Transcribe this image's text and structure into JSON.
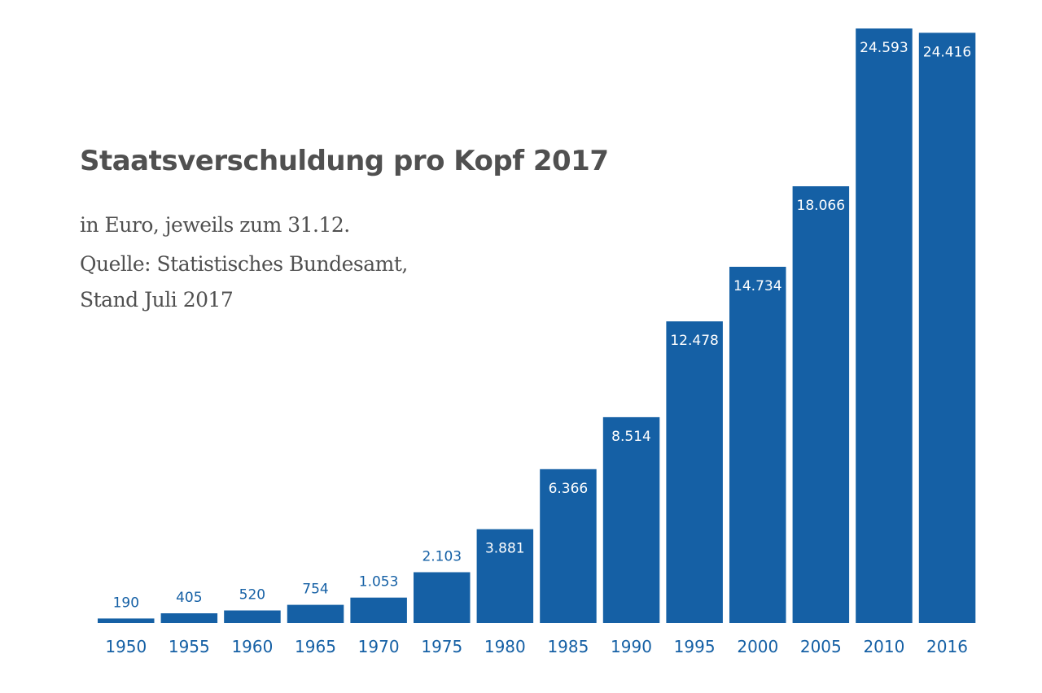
{
  "chart_data": {
    "type": "bar",
    "title": "Staatsverschuldung pro Kopf 2017",
    "subtitle_lines": [
      "in Euro, jeweils zum 31.12.",
      "Quelle: Statistisches Bundesamt,",
      "Stand Juli 2017"
    ],
    "categories": [
      "1950",
      "1955",
      "1960",
      "1965",
      "1970",
      "1975",
      "1980",
      "1985",
      "1990",
      "1995",
      "2000",
      "2005",
      "2010",
      "2016"
    ],
    "values": [
      190,
      405,
      520,
      754,
      1053,
      2103,
      3881,
      6366,
      8514,
      12478,
      14734,
      18066,
      24593,
      24416
    ],
    "value_labels": [
      "190",
      "405",
      "520",
      "754",
      "1.053",
      "2.103",
      "3.881",
      "6.366",
      "8.514",
      "12.478",
      "14.734",
      "18.066",
      "24.593",
      "24.416"
    ],
    "xlabel": "",
    "ylabel": "",
    "ylim": [
      0,
      24593
    ],
    "grid": false,
    "colors": {
      "bar": "#1560a5",
      "label_outside": "#1560a5",
      "label_inside": "#ffffff",
      "title": "#505050"
    }
  }
}
